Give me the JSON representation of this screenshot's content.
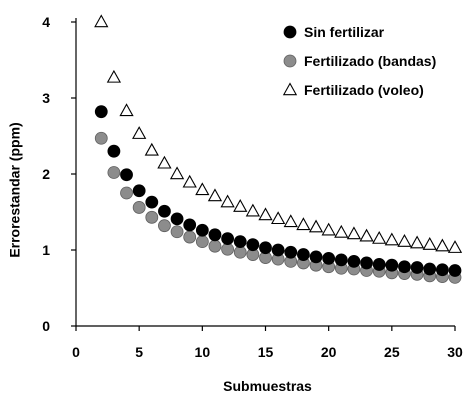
{
  "chart_data": {
    "type": "scatter",
    "xlabel": "Submuestras",
    "ylabel": "Errorestandar (ppm)",
    "xlim": [
      0,
      30
    ],
    "ylim": [
      0,
      4
    ],
    "xticks": [
      0,
      5,
      10,
      15,
      20,
      25,
      30
    ],
    "yticks": [
      0,
      1,
      2,
      3,
      4
    ],
    "xtick_labels": [
      "0",
      "5",
      "10",
      "15",
      "20",
      "25",
      "30"
    ],
    "ytick_labels": [
      "0",
      "1",
      "2",
      "3",
      "4"
    ],
    "grid": false,
    "legend_position": "top-right",
    "x": [
      2,
      3,
      4,
      5,
      6,
      7,
      8,
      9,
      10,
      11,
      12,
      13,
      14,
      15,
      16,
      17,
      18,
      19,
      20,
      21,
      22,
      23,
      24,
      25,
      26,
      27,
      28,
      29,
      30
    ],
    "series": [
      {
        "name": "Sin fertilizar",
        "marker": "filled-circle",
        "color": "#000000",
        "values": [
          2.82,
          2.3,
          1.99,
          1.78,
          1.63,
          1.51,
          1.41,
          1.33,
          1.26,
          1.2,
          1.15,
          1.11,
          1.07,
          1.03,
          1.0,
          0.97,
          0.94,
          0.91,
          0.89,
          0.87,
          0.85,
          0.83,
          0.81,
          0.8,
          0.78,
          0.77,
          0.75,
          0.74,
          0.73
        ]
      },
      {
        "name": "Fertilizado (bandas)",
        "marker": "gray-circle",
        "color": "#8c8c8c",
        "values": [
          2.47,
          2.02,
          1.75,
          1.56,
          1.43,
          1.32,
          1.24,
          1.17,
          1.11,
          1.05,
          1.01,
          0.97,
          0.94,
          0.9,
          0.88,
          0.85,
          0.83,
          0.8,
          0.78,
          0.76,
          0.75,
          0.73,
          0.72,
          0.7,
          0.69,
          0.68,
          0.66,
          0.65,
          0.64
        ]
      },
      {
        "name": "Fertilizado (voleo)",
        "marker": "hollow-triangle",
        "color": "#000000",
        "values": [
          4.0,
          3.27,
          2.83,
          2.53,
          2.31,
          2.14,
          2.0,
          1.89,
          1.79,
          1.71,
          1.63,
          1.57,
          1.51,
          1.46,
          1.41,
          1.37,
          1.33,
          1.3,
          1.26,
          1.23,
          1.21,
          1.18,
          1.15,
          1.13,
          1.11,
          1.09,
          1.07,
          1.05,
          1.03
        ]
      }
    ]
  }
}
